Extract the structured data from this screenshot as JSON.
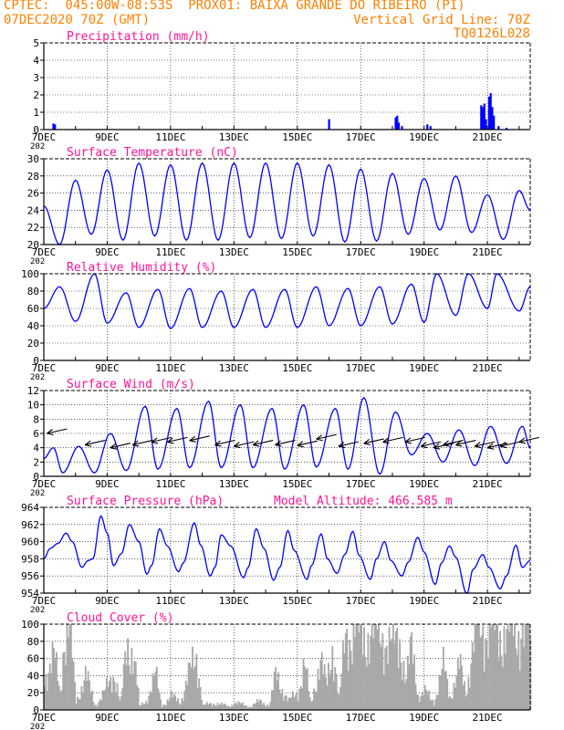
{
  "header": {
    "line1": "CPTEC:  045:00W-08:53S  PROX01: BAIXA GRANDE DO RIBEIRO (PI)",
    "line2_left": "07DEC2020 70Z (GMT)",
    "line2_right": "Vertical Grid Line: 70Z",
    "line3_right": "TQ0126L028",
    "color": "#ff8000"
  },
  "colors": {
    "title": "#ff1493",
    "line": "#0000ff",
    "cloud": "#a9a9a9",
    "axis": "#000000"
  },
  "x_axis": {
    "tick_labels": [
      "7DEC",
      "9DEC",
      "11DEC",
      "13DEC",
      "15DEC",
      "17DEC",
      "19DEC",
      "21DEC"
    ],
    "year_fragment": "202",
    "range_days": [
      7,
      22.35
    ]
  },
  "chart_data": [
    {
      "id": "precip",
      "type": "bar",
      "title": "Precipitation (mm/h)",
      "ylim": [
        0,
        5
      ],
      "yticks": [
        0,
        1,
        2,
        3,
        4,
        5
      ],
      "points": [
        [
          7.3,
          0.35
        ],
        [
          7.35,
          0.3
        ],
        [
          16.0,
          0.6
        ],
        [
          18.1,
          0.7
        ],
        [
          18.15,
          0.8
        ],
        [
          18.2,
          0.4
        ],
        [
          18.3,
          0.2
        ],
        [
          19.1,
          0.3
        ],
        [
          19.2,
          0.2
        ],
        [
          20.8,
          1.4
        ],
        [
          20.85,
          1.3
        ],
        [
          20.9,
          1.5
        ],
        [
          20.95,
          0.6
        ],
        [
          21.05,
          1.9
        ],
        [
          21.1,
          2.1
        ],
        [
          21.15,
          1.3
        ],
        [
          21.2,
          0.8
        ],
        [
          21.35,
          0.2
        ],
        [
          21.6,
          0.1
        ]
      ]
    },
    {
      "id": "temp",
      "type": "line",
      "title": "Surface Temperature (nC)",
      "ylim": [
        20,
        30
      ],
      "yticks": [
        20,
        22,
        24,
        26,
        28,
        30
      ],
      "mins": [
        [
          7.0,
          24.5
        ],
        [
          7.5,
          20.0
        ],
        [
          8.5,
          21.2
        ],
        [
          9.5,
          20.5
        ],
        [
          10.5,
          21.0
        ],
        [
          11.5,
          20.5
        ],
        [
          12.5,
          20.5
        ],
        [
          13.5,
          20.8
        ],
        [
          14.5,
          20.7
        ],
        [
          15.5,
          21.0
        ],
        [
          16.5,
          20.3
        ],
        [
          17.5,
          20.4
        ],
        [
          18.5,
          21.2
        ],
        [
          19.5,
          21.7
        ],
        [
          20.5,
          21.4
        ],
        [
          21.5,
          20.6
        ]
      ],
      "maxs": [
        [
          8.0,
          27.5
        ],
        [
          9.0,
          28.7
        ],
        [
          10.0,
          29.5
        ],
        [
          11.0,
          29.3
        ],
        [
          12.0,
          29.5
        ],
        [
          13.0,
          29.5
        ],
        [
          14.0,
          29.5
        ],
        [
          15.0,
          29.5
        ],
        [
          16.0,
          29.3
        ],
        [
          17.0,
          28.8
        ],
        [
          18.0,
          28.3
        ],
        [
          19.0,
          27.7
        ],
        [
          20.0,
          28.0
        ],
        [
          21.0,
          25.8
        ],
        [
          22.0,
          26.3
        ]
      ],
      "end": [
        22.35,
        24.0
      ]
    },
    {
      "id": "rh",
      "type": "line",
      "title": "Relative Humidity (%)",
      "ylim": [
        0,
        100
      ],
      "yticks": [
        0,
        20,
        40,
        60,
        80,
        100
      ],
      "mins": [
        [
          7.0,
          60
        ],
        [
          8.0,
          45
        ],
        [
          9.0,
          43
        ],
        [
          10.0,
          38
        ],
        [
          11.0,
          37
        ],
        [
          12.0,
          38
        ],
        [
          13.0,
          38
        ],
        [
          14.0,
          38
        ],
        [
          15.0,
          38
        ],
        [
          16.0,
          40
        ],
        [
          17.0,
          40
        ],
        [
          18.0,
          42
        ],
        [
          19.0,
          44
        ],
        [
          20.0,
          52
        ],
        [
          21.0,
          60
        ],
        [
          22.0,
          57
        ]
      ],
      "maxs": [
        [
          7.5,
          85
        ],
        [
          8.6,
          100
        ],
        [
          9.6,
          78
        ],
        [
          10.6,
          82
        ],
        [
          11.6,
          83
        ],
        [
          12.6,
          80
        ],
        [
          13.6,
          82
        ],
        [
          14.6,
          82
        ],
        [
          15.6,
          85
        ],
        [
          16.6,
          83
        ],
        [
          17.6,
          85
        ],
        [
          18.6,
          88
        ],
        [
          19.4,
          100
        ],
        [
          20.4,
          100
        ],
        [
          21.3,
          100
        ],
        [
          22.35,
          85
        ]
      ]
    },
    {
      "id": "wind",
      "type": "line",
      "title": "Surface Wind (m/s)",
      "ylim": [
        0,
        12
      ],
      "yticks": [
        0,
        2,
        4,
        6,
        8,
        10,
        12
      ],
      "mins": [
        [
          7.0,
          2.5
        ],
        [
          7.6,
          0.5
        ],
        [
          8.6,
          0.5
        ],
        [
          9.6,
          0.8
        ],
        [
          10.6,
          1.0
        ],
        [
          11.6,
          1.2
        ],
        [
          12.6,
          1.2
        ],
        [
          13.6,
          1.2
        ],
        [
          14.6,
          1.0
        ],
        [
          15.6,
          1.3
        ],
        [
          16.6,
          1.0
        ],
        [
          17.6,
          0.3
        ],
        [
          18.6,
          3.0
        ],
        [
          19.6,
          2.0
        ],
        [
          20.6,
          1.5
        ],
        [
          21.6,
          1.8
        ]
      ],
      "maxs": [
        [
          7.3,
          4.0
        ],
        [
          8.1,
          4.2
        ],
        [
          9.1,
          6.0
        ],
        [
          10.2,
          9.8
        ],
        [
          11.2,
          9.5
        ],
        [
          12.2,
          10.5
        ],
        [
          13.2,
          10.0
        ],
        [
          14.2,
          9.5
        ],
        [
          15.2,
          10.0
        ],
        [
          16.2,
          9.5
        ],
        [
          17.1,
          11.0
        ],
        [
          18.1,
          9.0
        ],
        [
          19.1,
          6.0
        ],
        [
          20.1,
          6.5
        ],
        [
          21.1,
          7.0
        ],
        [
          22.1,
          7.0
        ]
      ],
      "end": [
        22.35,
        4.0
      ],
      "barbs": [
        [
          7.1,
          6
        ],
        [
          8.3,
          4.4
        ],
        [
          9.1,
          4.0
        ],
        [
          9.8,
          4.4
        ],
        [
          10.4,
          4.8
        ],
        [
          10.9,
          4.8
        ],
        [
          11.6,
          5.0
        ],
        [
          12.4,
          4.4
        ],
        [
          13.0,
          4.2
        ],
        [
          13.6,
          4.4
        ],
        [
          14.3,
          4.4
        ],
        [
          15.0,
          4.3
        ],
        [
          15.6,
          5.2
        ],
        [
          16.3,
          4.2
        ],
        [
          17.1,
          4.6
        ],
        [
          17.7,
          4.8
        ],
        [
          18.4,
          4.8
        ],
        [
          18.9,
          4.2
        ],
        [
          19.3,
          4.0
        ],
        [
          19.6,
          4.4
        ],
        [
          20.0,
          4.4
        ],
        [
          20.6,
          4.2
        ],
        [
          21.0,
          4.0
        ],
        [
          21.4,
          4.2
        ],
        [
          22.0,
          4.8
        ]
      ]
    },
    {
      "id": "pressure",
      "type": "line",
      "title": "Surface Pressure (hPa)",
      "annotation": "Model Altitude: 466.585 m",
      "ylim": [
        954,
        964
      ],
      "yticks": [
        954,
        956,
        958,
        960,
        962,
        964
      ],
      "points": [
        [
          7.0,
          958.0
        ],
        [
          7.2,
          959.2
        ],
        [
          7.45,
          959.8
        ],
        [
          7.7,
          961.0
        ],
        [
          7.9,
          960.0
        ],
        [
          8.2,
          957.0
        ],
        [
          8.4,
          957.8
        ],
        [
          8.55,
          958.0
        ],
        [
          8.8,
          963.0
        ],
        [
          9.0,
          961.0
        ],
        [
          9.2,
          957.2
        ],
        [
          9.45,
          958.6
        ],
        [
          9.7,
          962.0
        ],
        [
          10.0,
          960.0
        ],
        [
          10.25,
          956.2
        ],
        [
          10.4,
          957.2
        ],
        [
          10.65,
          961.5
        ],
        [
          10.9,
          959.5
        ],
        [
          11.25,
          956.5
        ],
        [
          11.4,
          957.5
        ],
        [
          11.75,
          962.2
        ],
        [
          11.95,
          959.6
        ],
        [
          12.25,
          956.0
        ],
        [
          12.4,
          957.0
        ],
        [
          12.6,
          960.8
        ],
        [
          12.9,
          959.5
        ],
        [
          13.3,
          955.8
        ],
        [
          13.45,
          957.0
        ],
        [
          13.7,
          961.5
        ],
        [
          13.95,
          959.2
        ],
        [
          14.25,
          955.5
        ],
        [
          14.45,
          957.0
        ],
        [
          14.7,
          961.3
        ],
        [
          14.9,
          959.0
        ],
        [
          15.3,
          955.6
        ],
        [
          15.45,
          957.2
        ],
        [
          15.75,
          960.9
        ],
        [
          15.95,
          958.0
        ],
        [
          16.25,
          956.3
        ],
        [
          16.5,
          958.5
        ],
        [
          16.75,
          961.2
        ],
        [
          16.95,
          958.4
        ],
        [
          17.3,
          955.6
        ],
        [
          17.5,
          958.0
        ],
        [
          17.75,
          960.0
        ],
        [
          17.95,
          957.8
        ],
        [
          18.3,
          956.0
        ],
        [
          18.5,
          957.6
        ],
        [
          18.8,
          960.5
        ],
        [
          19.0,
          958.8
        ],
        [
          19.35,
          955.0
        ],
        [
          19.55,
          957.5
        ],
        [
          19.8,
          959.5
        ],
        [
          20.0,
          958.2
        ],
        [
          20.35,
          953.9
        ],
        [
          20.55,
          956.8
        ],
        [
          20.85,
          958.5
        ],
        [
          21.05,
          957.0
        ],
        [
          21.4,
          954.5
        ],
        [
          21.6,
          956.0
        ],
        [
          21.9,
          959.6
        ],
        [
          22.1,
          957.0
        ],
        [
          22.35,
          957.8
        ]
      ]
    },
    {
      "id": "cloud",
      "type": "area",
      "title": "Cloud Cover (%)",
      "ylim": [
        0,
        100
      ],
      "yticks": [
        0,
        20,
        40,
        60,
        80,
        100
      ],
      "points": [
        [
          7.0,
          40
        ],
        [
          7.3,
          60
        ],
        [
          7.5,
          20
        ],
        [
          7.6,
          85
        ],
        [
          7.8,
          90
        ],
        [
          8.0,
          10
        ],
        [
          8.3,
          40
        ],
        [
          8.6,
          5
        ],
        [
          8.9,
          20
        ],
        [
          9.2,
          45
        ],
        [
          9.4,
          5
        ],
        [
          9.6,
          75
        ],
        [
          9.8,
          70
        ],
        [
          10.0,
          4
        ],
        [
          10.2,
          10
        ],
        [
          10.5,
          40
        ],
        [
          10.7,
          5
        ],
        [
          11.0,
          15
        ],
        [
          11.3,
          10
        ],
        [
          11.6,
          45
        ],
        [
          11.8,
          65
        ],
        [
          12.0,
          5
        ],
        [
          12.4,
          8
        ],
        [
          12.8,
          4
        ],
        [
          13.0,
          8
        ],
        [
          13.5,
          4
        ],
        [
          13.8,
          10
        ],
        [
          14.1,
          5
        ],
        [
          14.3,
          40
        ],
        [
          14.7,
          10
        ],
        [
          15.0,
          20
        ],
        [
          15.2,
          55
        ],
        [
          15.4,
          5
        ],
        [
          15.7,
          60
        ],
        [
          15.9,
          25
        ],
        [
          16.1,
          80
        ],
        [
          16.3,
          10
        ],
        [
          16.5,
          85
        ],
        [
          16.8,
          95
        ],
        [
          17.0,
          85
        ],
        [
          17.3,
          90
        ],
        [
          17.6,
          95
        ],
        [
          17.9,
          70
        ],
        [
          18.2,
          90
        ],
        [
          18.4,
          30
        ],
        [
          18.6,
          75
        ],
        [
          18.8,
          15
        ],
        [
          19.0,
          20
        ],
        [
          19.3,
          10
        ],
        [
          19.6,
          50
        ],
        [
          19.8,
          15
        ],
        [
          20.1,
          50
        ],
        [
          20.3,
          20
        ],
        [
          20.6,
          95
        ],
        [
          21.0,
          95
        ],
        [
          21.4,
          90
        ],
        [
          21.8,
          95
        ],
        [
          22.35,
          90
        ]
      ]
    }
  ]
}
